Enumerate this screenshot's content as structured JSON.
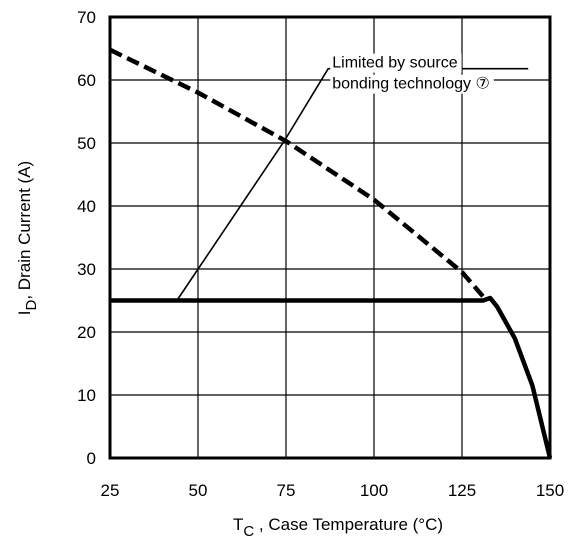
{
  "chart_data": {
    "type": "line",
    "xlabel": {
      "main": "T",
      "sub": "C",
      "rest": " , Case Temperature (°C)"
    },
    "ylabel": {
      "main": "I",
      "sub": "D",
      "rest": ",  Drain Current (A)"
    },
    "xlim": [
      25,
      150
    ],
    "ylim": [
      0,
      70
    ],
    "xticks": [
      25,
      50,
      75,
      100,
      125,
      150
    ],
    "yticks": [
      0,
      10,
      20,
      30,
      40,
      50,
      60,
      70
    ],
    "grid": true,
    "series": [
      {
        "style": "dashed-thick",
        "points": [
          [
            25,
            64.8
          ],
          [
            50,
            58.0
          ],
          [
            75,
            50.3
          ],
          [
            100,
            41.0
          ],
          [
            125,
            29.5
          ],
          [
            131.5,
            25.3
          ]
        ]
      },
      {
        "style": "solid-thick",
        "points": [
          [
            25,
            25
          ],
          [
            131,
            25
          ],
          [
            133,
            25.4
          ],
          [
            135,
            24.0
          ],
          [
            140,
            19.0
          ],
          [
            145,
            11.5
          ],
          [
            150,
            0
          ]
        ]
      }
    ],
    "annotations": [
      {
        "lines": [
          "Limited by source",
          "bonding technology ⑦"
        ],
        "leader_points": [
          [
            44,
            25
          ],
          [
            74.5,
            50.3
          ],
          [
            87,
            61.8
          ]
        ]
      }
    ]
  }
}
